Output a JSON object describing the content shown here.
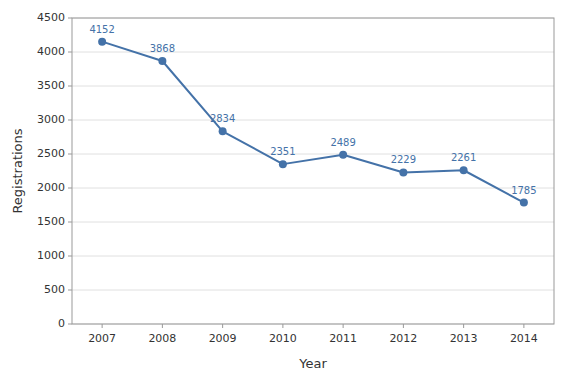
{
  "chart_data": {
    "type": "line",
    "x": [
      2007,
      2008,
      2009,
      2010,
      2011,
      2012,
      2013,
      2014
    ],
    "values": [
      4152,
      3868,
      2834,
      2351,
      2489,
      2229,
      2261,
      1785
    ],
    "color": "#4472a8",
    "marker": "circle",
    "xlabel": "Year",
    "ylabel": "Registrations",
    "xlim": [
      2006.5,
      2014.5
    ],
    "xticks": [
      2007,
      2008,
      2009,
      2010,
      2011,
      2012,
      2013,
      2014
    ],
    "ylim": [
      0,
      4500
    ],
    "yticks": [
      0,
      500,
      1000,
      1500,
      2000,
      2500,
      3000,
      3500,
      4000,
      4500
    ],
    "grid": true,
    "data_labels": true
  }
}
